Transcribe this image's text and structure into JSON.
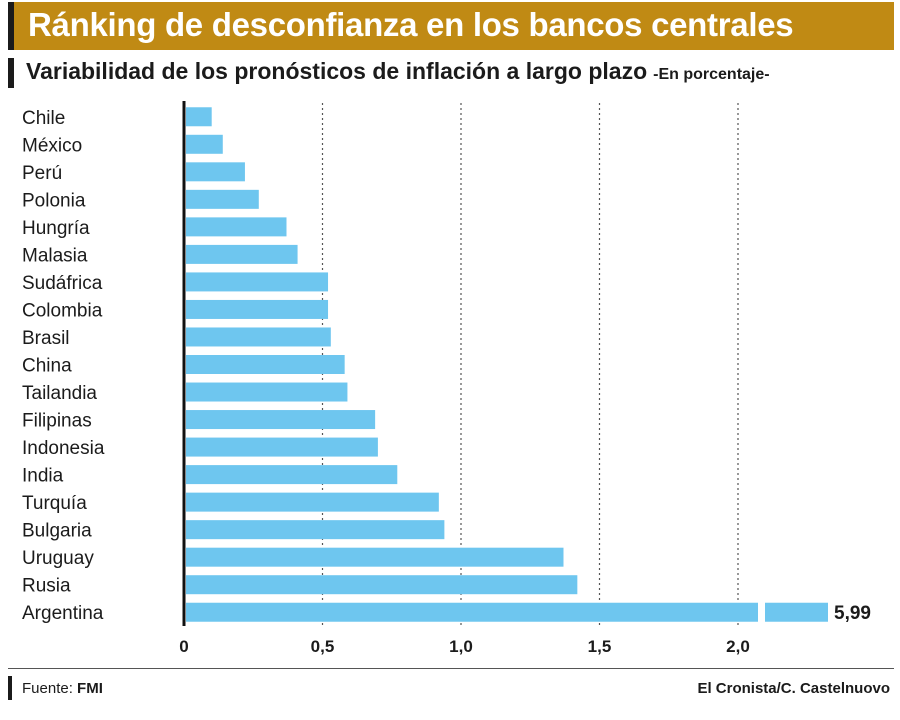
{
  "header": {
    "title": "Ránking de desconfianza en los bancos centrales",
    "subtitle": "Variabilidad de los pronósticos de inflación a largo plazo",
    "unit_note": "-En porcentaje-"
  },
  "chart_data": {
    "type": "bar",
    "orientation": "horizontal",
    "title": "Ránking de desconfianza en los bancos centrales",
    "xlabel": "",
    "ylabel": "",
    "xlim": [
      0,
      2.3
    ],
    "grid": "vertical dotted",
    "x_ticks": [
      {
        "value": 0,
        "label": "0"
      },
      {
        "value": 0.5,
        "label": "0,5"
      },
      {
        "value": 1.0,
        "label": "1,0"
      },
      {
        "value": 1.5,
        "label": "1,5"
      },
      {
        "value": 2.0,
        "label": "2,0"
      }
    ],
    "categories": [
      "Chile",
      "México",
      "Perú",
      "Polonia",
      "Hungría",
      "Malasia",
      "Sudáfrica",
      "Colombia",
      "Brasil",
      "China",
      "Tailandia",
      "Filipinas",
      "Indonesia",
      "India",
      "Turquía",
      "Bulgaria",
      "Uruguay",
      "Rusia",
      "Argentina"
    ],
    "values": [
      0.1,
      0.14,
      0.22,
      0.27,
      0.37,
      0.41,
      0.52,
      0.52,
      0.53,
      0.58,
      0.59,
      0.69,
      0.7,
      0.77,
      0.92,
      0.94,
      1.37,
      1.42,
      5.99
    ],
    "axis_break": {
      "category": "Argentina",
      "label": "5,99"
    },
    "bar_color": "#6ec6ef"
  },
  "footer": {
    "source_label": "Fuente:",
    "source_value": "FMI",
    "credit": "El Cronista/C. Castelnuovo"
  },
  "colors": {
    "header_bg": "#c08a14",
    "bar": "#6ec6ef",
    "text": "#1b1b1b"
  }
}
